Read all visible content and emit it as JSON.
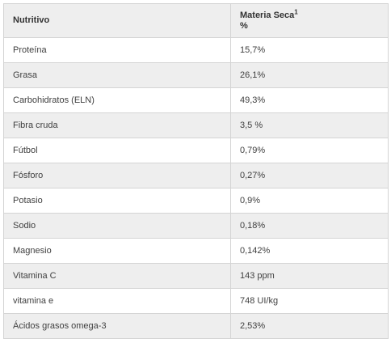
{
  "table": {
    "headers": {
      "nutrient": "Nutritivo",
      "dry_matter": "Materia Seca",
      "dry_matter_sup": "1",
      "dry_matter_unit": "%"
    },
    "rows": [
      {
        "nutrient": "Proteína",
        "value": "15,7%"
      },
      {
        "nutrient": "Grasa",
        "value": "26,1%"
      },
      {
        "nutrient": "Carbohidratos (ELN)",
        "value": "49,3%"
      },
      {
        "nutrient": "Fibra cruda",
        "value": "3,5 %"
      },
      {
        "nutrient": "Fútbol",
        "value": "0,79%"
      },
      {
        "nutrient": "Fósforo",
        "value": "0,27%"
      },
      {
        "nutrient": "Potasio",
        "value": "0,9%"
      },
      {
        "nutrient": "Sodio",
        "value": "0,18%"
      },
      {
        "nutrient": "Magnesio",
        "value": "0,142%"
      },
      {
        "nutrient": "Vitamina C",
        "value": "143 ppm"
      },
      {
        "nutrient": "vitamina e",
        "value": "748 UI/kg"
      },
      {
        "nutrient": "Ácidos grasos omega-3",
        "value": "2,53%"
      }
    ]
  }
}
